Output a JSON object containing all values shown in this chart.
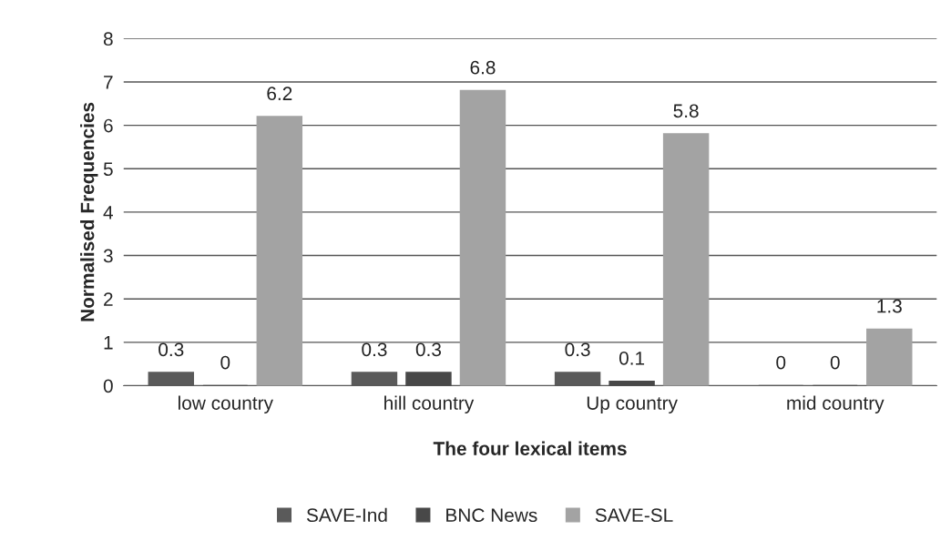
{
  "chart_data": {
    "type": "bar",
    "xlabel": "The four lexical items",
    "ylabel": "Normalised Frequencies",
    "categories": [
      "low country",
      "hill country",
      "Up country",
      "mid country"
    ],
    "series": [
      {
        "name": "SAVE-Ind",
        "color": "#5a5a5a",
        "values": [
          0.3,
          0.3,
          0.3,
          0
        ]
      },
      {
        "name": "BNC News",
        "color": "#484848",
        "values": [
          0,
          0.3,
          0.1,
          0
        ]
      },
      {
        "name": "SAVE-SL",
        "color": "#a3a3a3",
        "values": [
          6.2,
          6.8,
          5.8,
          1.3
        ]
      }
    ],
    "ylim": [
      0,
      8
    ],
    "yticks": [
      0,
      1,
      2,
      3,
      4,
      5,
      6,
      7,
      8
    ],
    "grid": "y",
    "legend": "bottom",
    "data_labels": true
  }
}
